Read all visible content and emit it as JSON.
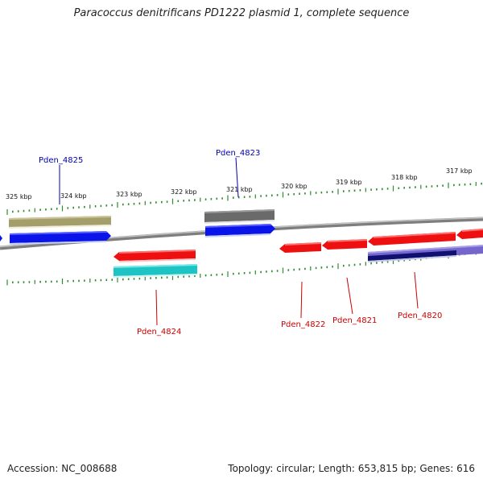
{
  "title": "Paracoccus denitrificans PD1222 plasmid 1, complete sequence",
  "footer": {
    "accession": "Accession: NC_008688",
    "summary": "Topology: circular; Length: 653,815 bp; Genes: 616"
  },
  "kbp_labels": [
    "325 kbp",
    "324 kbp",
    "323 kbp",
    "322 kbp",
    "321 kbp",
    "320 kbp",
    "319 kbp",
    "318 kbp",
    "317 kbp"
  ],
  "gene_labels": {
    "forward": [
      "Pden_4825",
      "Pden_4823"
    ],
    "reverse": [
      "Pden_4824",
      "Pden_4822",
      "Pden_4821",
      "Pden_4820"
    ]
  },
  "colors": {
    "forward_label": "#0000b0",
    "reverse_label": "#cc0000",
    "backbone": "#8c8c8c",
    "tick": "#2e8b2e",
    "cds_forward": "#0a14e8",
    "cds_reverse": "#ee1010",
    "khaki_feature": "#a49e6a",
    "gray_feature": "#6a6a6a",
    "cyan_feature": "#1ec4c4",
    "purple_feature": "#7466cc",
    "navy_feature": "#101070"
  }
}
